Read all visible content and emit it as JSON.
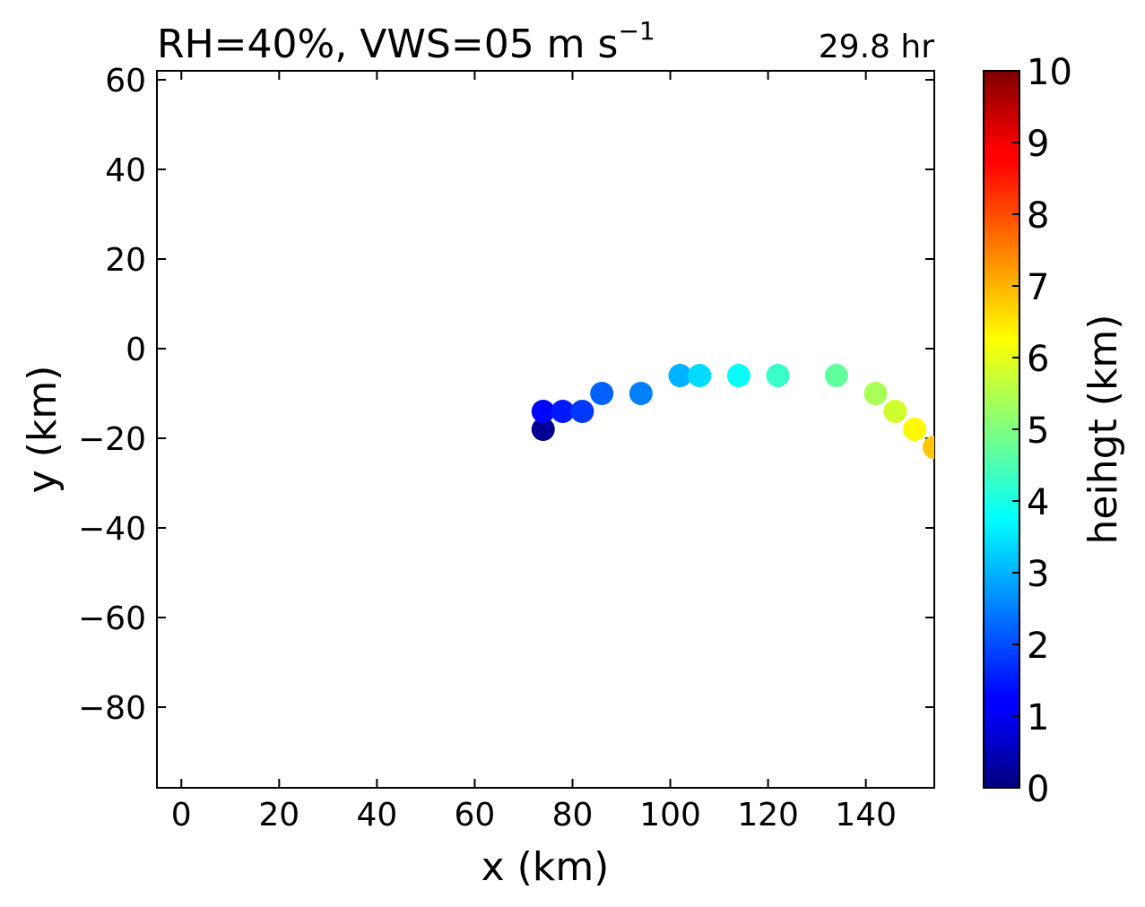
{
  "chart_data": {
    "type": "scatter",
    "title": "RH=40%, VWS=05 m s",
    "title_superscript": "−1",
    "time_label": "29.8 hr",
    "time_label_color": "#0000ff",
    "xlabel": "x (km)",
    "ylabel": "y (km)",
    "xlim": [
      -5,
      154
    ],
    "ylim": [
      -98,
      62
    ],
    "xticks": [
      0,
      20,
      40,
      60,
      80,
      100,
      120,
      140
    ],
    "yticks": [
      60,
      40,
      20,
      0,
      -20,
      -40,
      -60,
      -80
    ],
    "ytick_labels": [
      "60",
      "40",
      "20",
      "0",
      "−20",
      "−40",
      "−60",
      "−80"
    ],
    "grid": false,
    "colormap": "jet",
    "points": [
      {
        "x": 74,
        "y": -18,
        "height": 0.2
      },
      {
        "x": 74,
        "y": -14,
        "height": 1.3
      },
      {
        "x": 78,
        "y": -14,
        "height": 1.5
      },
      {
        "x": 82,
        "y": -14,
        "height": 1.8
      },
      {
        "x": 86,
        "y": -10,
        "height": 2.2
      },
      {
        "x": 94,
        "y": -10,
        "height": 2.5
      },
      {
        "x": 102,
        "y": -6,
        "height": 3.0
      },
      {
        "x": 106,
        "y": -6,
        "height": 3.4
      },
      {
        "x": 114,
        "y": -6,
        "height": 3.8
      },
      {
        "x": 122,
        "y": -6,
        "height": 4.3
      },
      {
        "x": 134,
        "y": -6,
        "height": 4.7
      },
      {
        "x": 142,
        "y": -10,
        "height": 5.4
      },
      {
        "x": 146,
        "y": -14,
        "height": 5.8
      },
      {
        "x": 150,
        "y": -18,
        "height": 6.3
      },
      {
        "x": 154,
        "y": -22,
        "height": 6.8
      }
    ],
    "colorbar": {
      "label": "heihgt (km)",
      "min": 0,
      "max": 10,
      "ticks": [
        "0",
        "1",
        "2",
        "3",
        "4",
        "5",
        "6",
        "7",
        "8",
        "9",
        "10"
      ]
    }
  }
}
